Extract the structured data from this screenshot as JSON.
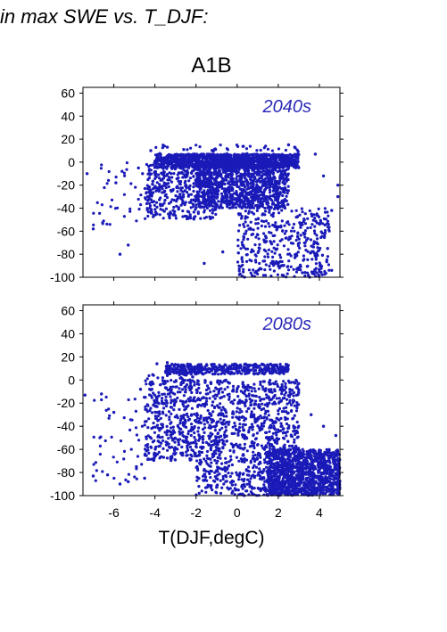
{
  "figure": {
    "header": "in max SWE vs. T_DJF:",
    "scenario": "A1B",
    "xlabel": "T(DJF,degC)"
  },
  "colors": {
    "points": "#1a1ab8",
    "annotation": "#2a2ab8",
    "axis": "#000000"
  },
  "chart_data": [
    {
      "type": "scatter",
      "annotation": "2040s",
      "xlim": [
        -7.5,
        5
      ],
      "ylim": [
        -100,
        65
      ],
      "xticks": [
        -6,
        -4,
        -2,
        0,
        2,
        4
      ],
      "xtick_labels_shown": false,
      "yticks": [
        -100,
        -80,
        -60,
        -40,
        -20,
        0,
        20,
        40,
        60
      ],
      "grid": false,
      "density_regions": [
        {
          "x": [
            -4,
            3
          ],
          "y": [
            -5,
            7
          ],
          "density": "very dense"
        },
        {
          "x": [
            -2,
            2.5
          ],
          "y": [
            -40,
            0
          ],
          "density": "very dense"
        },
        {
          "x": [
            -4.5,
            -1
          ],
          "y": [
            -50,
            0
          ],
          "density": "dense"
        },
        {
          "x": [
            0,
            4.5
          ],
          "y": [
            -100,
            -40
          ],
          "density": "dense"
        },
        {
          "x": [
            -7,
            -4
          ],
          "y": [
            -60,
            0
          ],
          "density": "sparse"
        },
        {
          "x": [
            -4,
            3
          ],
          "y": [
            5,
            15
          ],
          "density": "sparse"
        }
      ],
      "marked_points": [
        [
          -7.3,
          -10
        ],
        [
          -7.0,
          -58
        ],
        [
          -5.9,
          -18
        ],
        [
          -5.6,
          -8
        ],
        [
          -5.7,
          -80
        ],
        [
          -5.3,
          -72
        ],
        [
          -4.8,
          -5
        ],
        [
          -4.6,
          -10
        ],
        [
          -3.9,
          -45
        ],
        [
          -4.2,
          10
        ],
        [
          -3.4,
          13
        ],
        [
          -2.6,
          11
        ],
        [
          -1.6,
          -88
        ],
        [
          -0.7,
          -78
        ],
        [
          2.5,
          15
        ],
        [
          2.8,
          13
        ],
        [
          3.3,
          -62
        ],
        [
          4.0,
          -95
        ],
        [
          4.6,
          -94
        ],
        [
          4.4,
          -75
        ],
        [
          4.9,
          -30
        ],
        [
          4.9,
          -20
        ],
        [
          4.6,
          -42
        ],
        [
          4.2,
          -12
        ],
        [
          3.8,
          7
        ]
      ]
    },
    {
      "type": "scatter",
      "annotation": "2080s",
      "xlim": [
        -7.5,
        5
      ],
      "ylim": [
        -100,
        65
      ],
      "xticks": [
        -6,
        -4,
        -2,
        0,
        2,
        4
      ],
      "xtick_labels": [
        "-6",
        "-4",
        "-2",
        "0",
        "2",
        "4"
      ],
      "yticks": [
        -100,
        -80,
        -60,
        -40,
        -20,
        0,
        20,
        40,
        60
      ],
      "grid": false,
      "density_regions": [
        {
          "x": [
            -3.5,
            2.5
          ],
          "y": [
            5,
            14
          ],
          "density": "dense"
        },
        {
          "x": [
            -2,
            3
          ],
          "y": [
            -100,
            0
          ],
          "density": "very dense"
        },
        {
          "x": [
            -4.5,
            -2
          ],
          "y": [
            -70,
            5
          ],
          "density": "dense"
        },
        {
          "x": [
            1.5,
            5
          ],
          "y": [
            -100,
            -60
          ],
          "density": "very dense"
        },
        {
          "x": [
            -7,
            -4.5
          ],
          "y": [
            -90,
            -10
          ],
          "density": "sparse"
        }
      ],
      "marked_points": [
        [
          -7.4,
          -13
        ],
        [
          -7.0,
          -83
        ],
        [
          -6.6,
          -12
        ],
        [
          -6.3,
          -82
        ],
        [
          -6.0,
          -28
        ],
        [
          -5.7,
          -90
        ],
        [
          -5.3,
          -88
        ],
        [
          -4.9,
          -75
        ],
        [
          -4.5,
          -85
        ],
        [
          -4.7,
          -8
        ],
        [
          -3.9,
          14
        ],
        [
          -3.4,
          15
        ],
        [
          -2.7,
          13
        ],
        [
          3.0,
          -3
        ],
        [
          3.6,
          -30
        ],
        [
          4.3,
          -85
        ],
        [
          4.9,
          -98
        ],
        [
          4.8,
          -48
        ],
        [
          4.6,
          -65
        ],
        [
          4.2,
          -40
        ]
      ]
    }
  ]
}
